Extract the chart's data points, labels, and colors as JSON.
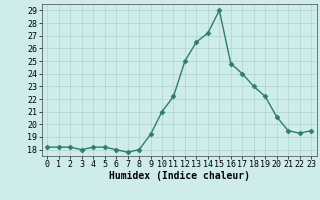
{
  "x": [
    0,
    1,
    2,
    3,
    4,
    5,
    6,
    7,
    8,
    9,
    10,
    11,
    12,
    13,
    14,
    15,
    16,
    17,
    18,
    19,
    20,
    21,
    22,
    23
  ],
  "y": [
    18.2,
    18.2,
    18.2,
    18.0,
    18.2,
    18.2,
    18.0,
    17.8,
    18.0,
    19.2,
    21.0,
    22.2,
    25.0,
    26.5,
    27.2,
    29.0,
    24.8,
    24.0,
    23.0,
    22.2,
    20.6,
    19.5,
    19.3,
    19.5
  ],
  "line_color": "#2e7d6e",
  "marker": "D",
  "marker_size": 2.5,
  "bg_color": "#ceecea",
  "grid_color": "#b0d4d0",
  "xlabel": "Humidex (Indice chaleur)",
  "xlim": [
    -0.5,
    23.5
  ],
  "ylim": [
    17.5,
    29.5
  ],
  "yticks": [
    18,
    19,
    20,
    21,
    22,
    23,
    24,
    25,
    26,
    27,
    28,
    29
  ],
  "xticks": [
    0,
    1,
    2,
    3,
    4,
    5,
    6,
    7,
    8,
    9,
    10,
    11,
    12,
    13,
    14,
    15,
    16,
    17,
    18,
    19,
    20,
    21,
    22,
    23
  ],
  "xlabel_fontsize": 7,
  "tick_fontsize": 6,
  "line_width": 1.0
}
